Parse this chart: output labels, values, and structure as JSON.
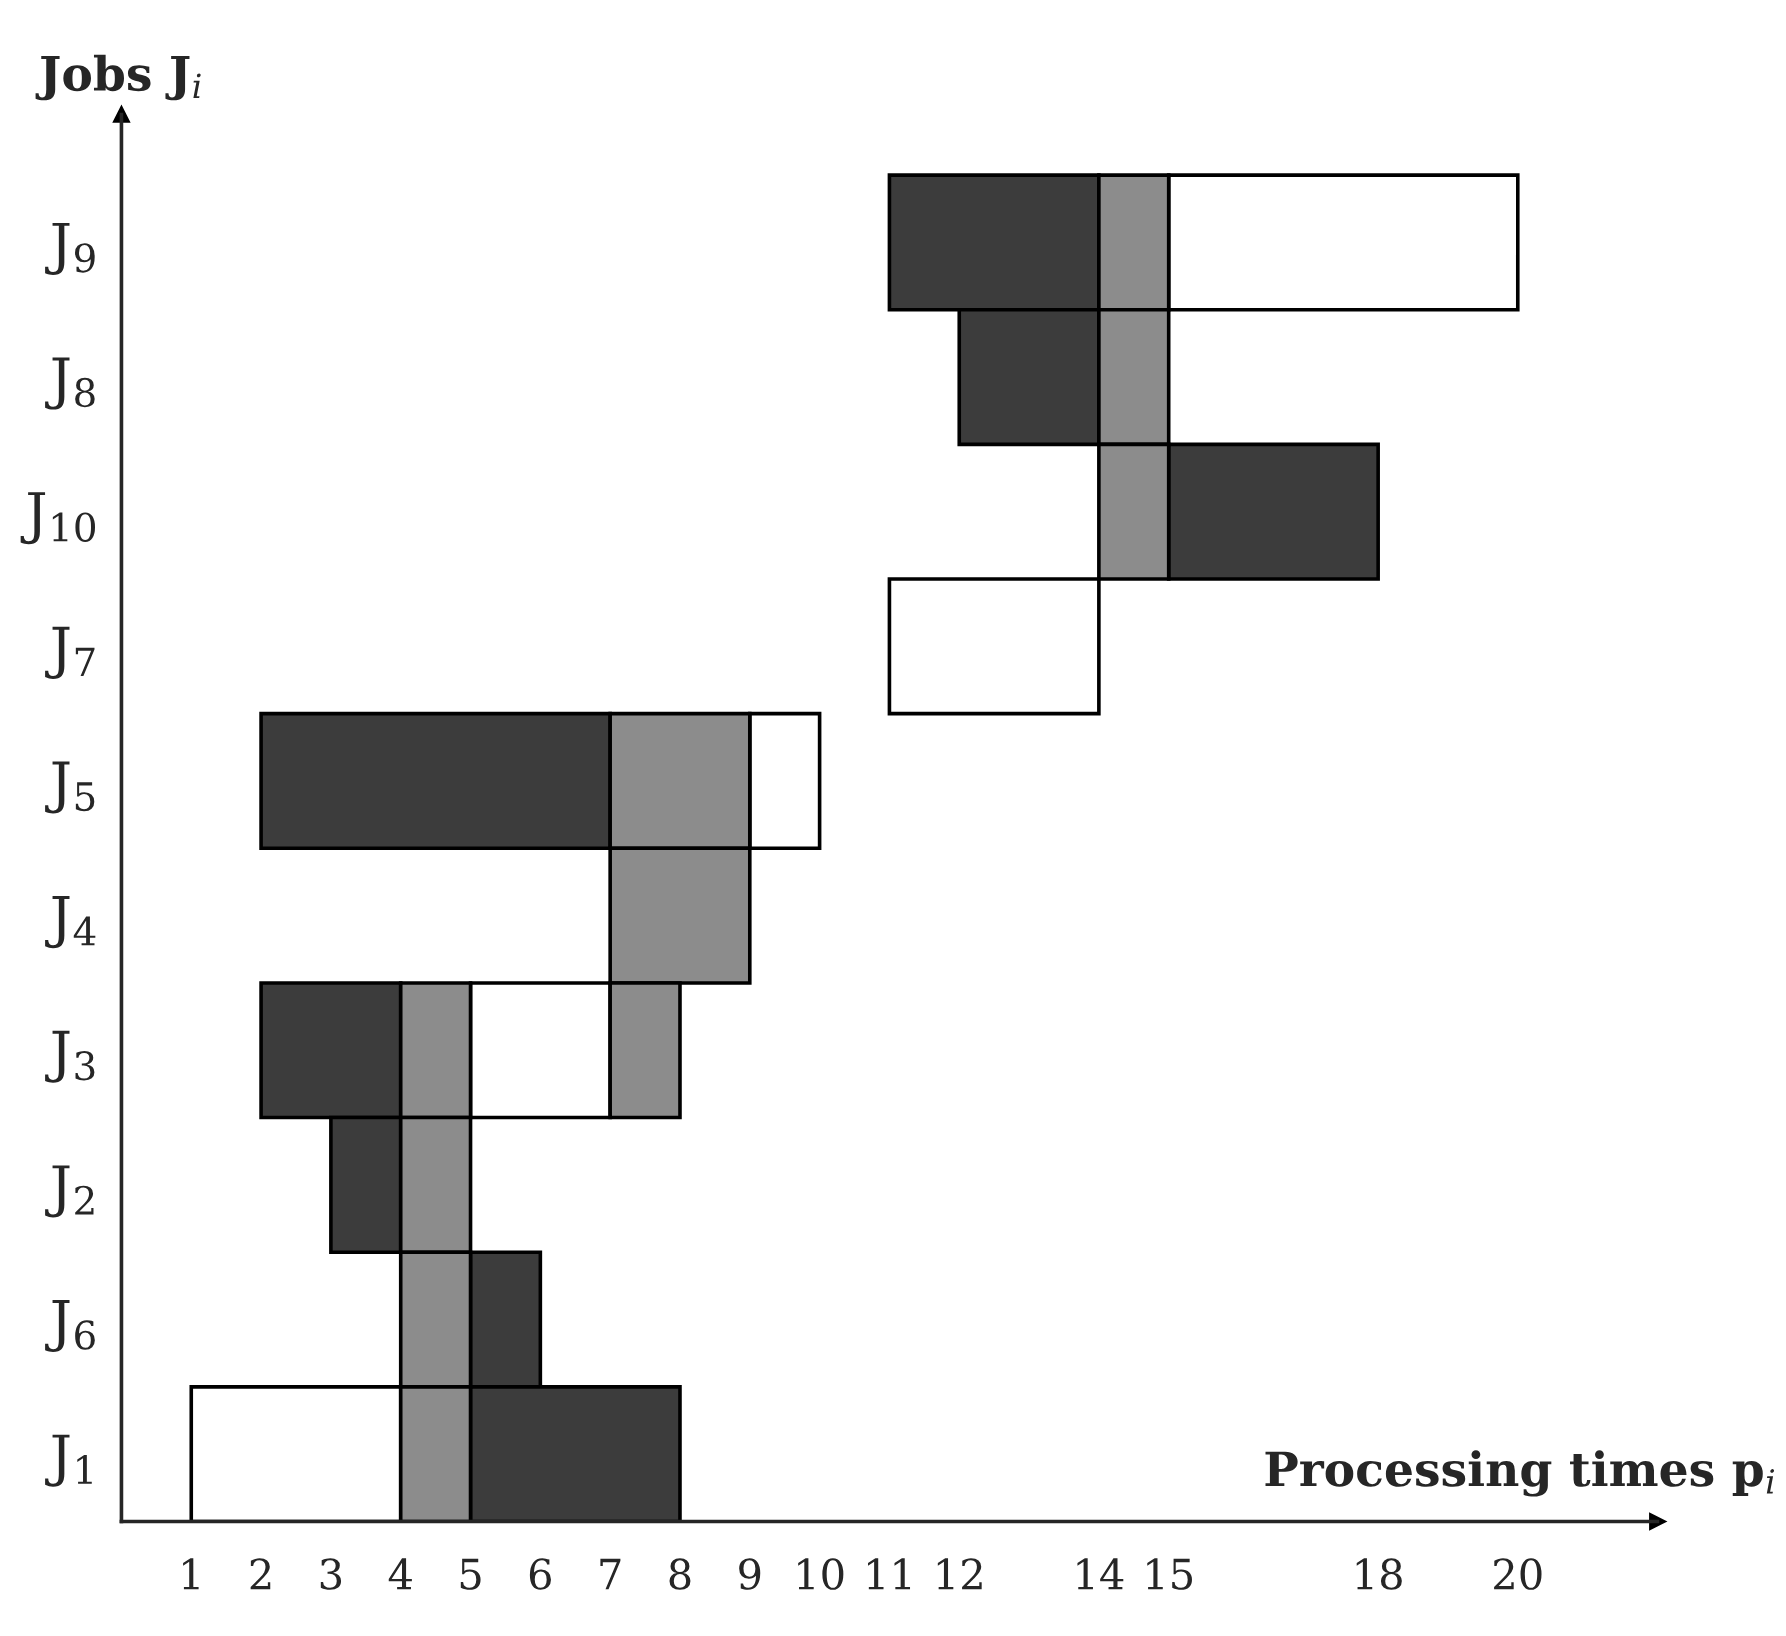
{
  "chart_data": {
    "type": "bar",
    "orientation": "horizontal",
    "xlabel": "Processing times p$_{i}$",
    "ylabel": "Jobs J$_{i}$",
    "categories": [
      "J$_{9}$",
      "J$_{8}$",
      "J$_{10}$",
      "J$_{7}$",
      "J$_{5}$",
      "J$_{4}$",
      "J$_{3}$",
      "J$_{2}$",
      "J$_{6}$",
      "J$_{1}$"
    ],
    "series": [
      {
        "color": "#ffffff",
        "base": [
          15,
          null,
          null,
          11,
          9,
          null,
          5,
          null,
          null,
          1
        ],
        "values": [
          5,
          null,
          null,
          3,
          1,
          null,
          2,
          null,
          null,
          3
        ]
      },
      {
        "color": "#3c3c3c",
        "base": [
          11,
          12,
          15,
          null,
          2,
          null,
          2,
          3,
          5,
          5
        ],
        "values": [
          3,
          2,
          3,
          null,
          5,
          null,
          2,
          1,
          1,
          3
        ]
      },
      {
        "color": "#8c8c8c",
        "base": [
          14,
          14,
          14,
          null,
          7,
          7,
          4,
          4,
          4,
          4
        ],
        "values": [
          1,
          1,
          1,
          null,
          2,
          2,
          1,
          1,
          1,
          1
        ]
      },
      {
        "color": "#8c8c8c",
        "base": [
          null,
          null,
          null,
          null,
          null,
          null,
          7,
          null,
          null,
          null
        ],
        "values": [
          null,
          null,
          null,
          null,
          null,
          null,
          1,
          null,
          null,
          null
        ]
      }
    ],
    "xlim": [
      0,
      22
    ],
    "xticks": [
      1,
      2,
      3,
      4,
      5,
      6,
      7,
      8,
      9,
      10,
      11,
      12,
      14,
      15,
      18,
      20
    ],
    "grid": false,
    "legend": false
  }
}
